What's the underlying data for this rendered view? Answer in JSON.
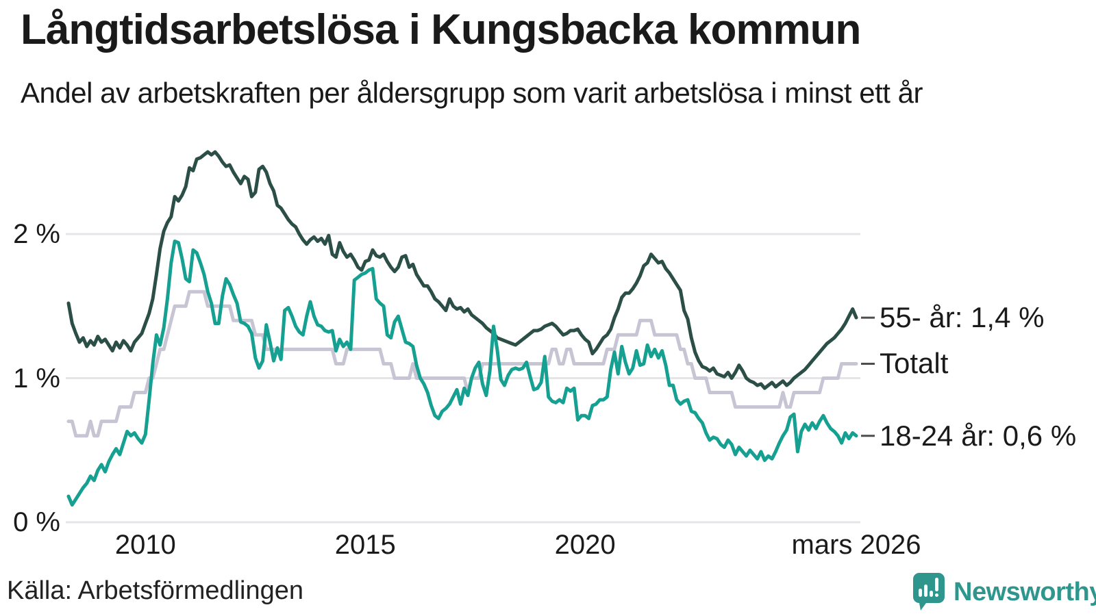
{
  "header": {
    "title": "Långtidsarbetslösa i Kungsbacka kommun",
    "subtitle": "Andel av arbetskraften per åldersgrupp som varit arbetslösa i minst ett år"
  },
  "footer": {
    "source": "Källa: Arbetsförmedlingen",
    "brand": "Newsworthy"
  },
  "colors": {
    "text": "#1a1a1a",
    "grid": "#e4e4e9",
    "brand_teal": "#2e968c"
  },
  "chart_data": {
    "type": "line",
    "title": "Långtidsarbetslösa i Kungsbacka kommun",
    "subtitle": "Andel av arbetskraften per åldersgrupp som varit arbetslösa i minst ett år",
    "x_interval": "monthly",
    "x_start_month": "2008-04",
    "x_end_month": "2026-03",
    "ylim": [
      0,
      2.75
    ],
    "grid": "horizontal",
    "legend_position": "line-end-labels-right",
    "y_ticks": [
      {
        "label": "2 %",
        "value": 2
      },
      {
        "label": "1 %",
        "value": 1
      },
      {
        "label": "0 %",
        "value": 0
      }
    ],
    "x_ticks": [
      {
        "label": "2010",
        "month_index": 21
      },
      {
        "label": "2015",
        "month_index": 81
      },
      {
        "label": "2020",
        "month_index": 141
      },
      {
        "label": "mars 2026",
        "month_index": 215
      }
    ],
    "series": [
      {
        "name": "55- år",
        "label": "55- år: 1,4 %",
        "end_value_label": "1,4 %",
        "color": "#2b4f47",
        "values": [
          1.52,
          1.38,
          1.31,
          1.25,
          1.28,
          1.22,
          1.26,
          1.23,
          1.29,
          1.25,
          1.27,
          1.23,
          1.19,
          1.25,
          1.21,
          1.26,
          1.23,
          1.19,
          1.25,
          1.28,
          1.31,
          1.38,
          1.45,
          1.55,
          1.72,
          1.9,
          2.02,
          2.08,
          2.12,
          2.26,
          2.23,
          2.27,
          2.33,
          2.46,
          2.44,
          2.52,
          2.53,
          2.55,
          2.57,
          2.55,
          2.57,
          2.54,
          2.5,
          2.47,
          2.48,
          2.43,
          2.39,
          2.35,
          2.4,
          2.38,
          2.26,
          2.29,
          2.45,
          2.47,
          2.43,
          2.35,
          2.3,
          2.2,
          2.18,
          2.14,
          2.1,
          2.07,
          2.05,
          2.0,
          1.96,
          1.93,
          1.96,
          1.98,
          1.95,
          1.97,
          1.93,
          1.99,
          1.86,
          1.84,
          1.94,
          1.88,
          1.84,
          1.86,
          1.82,
          1.77,
          1.75,
          1.81,
          1.82,
          1.89,
          1.85,
          1.84,
          1.86,
          1.81,
          1.77,
          1.74,
          1.77,
          1.84,
          1.85,
          1.77,
          1.79,
          1.72,
          1.68,
          1.64,
          1.64,
          1.6,
          1.55,
          1.53,
          1.5,
          1.47,
          1.55,
          1.5,
          1.48,
          1.49,
          1.46,
          1.48,
          1.44,
          1.42,
          1.4,
          1.38,
          1.35,
          1.33,
          1.31,
          1.28,
          1.27,
          1.26,
          1.25,
          1.24,
          1.23,
          1.25,
          1.27,
          1.29,
          1.31,
          1.33,
          1.33,
          1.34,
          1.36,
          1.37,
          1.38,
          1.36,
          1.33,
          1.3,
          1.31,
          1.33,
          1.33,
          1.34,
          1.3,
          1.27,
          1.25,
          1.17,
          1.2,
          1.24,
          1.28,
          1.3,
          1.34,
          1.42,
          1.48,
          1.56,
          1.59,
          1.59,
          1.62,
          1.66,
          1.71,
          1.78,
          1.8,
          1.86,
          1.83,
          1.8,
          1.81,
          1.76,
          1.73,
          1.69,
          1.65,
          1.61,
          1.47,
          1.41,
          1.28,
          1.18,
          1.12,
          1.08,
          1.07,
          1.05,
          1.07,
          1.03,
          1.02,
          1.01,
          1.04,
          1.0,
          1.04,
          1.09,
          1.05,
          1.0,
          0.98,
          0.97,
          0.95,
          0.96,
          0.93,
          0.95,
          0.97,
          0.94,
          0.96,
          0.98,
          0.95,
          0.97,
          1.0,
          1.02,
          1.04,
          1.06,
          1.09,
          1.12,
          1.15,
          1.18,
          1.21,
          1.24,
          1.26,
          1.28,
          1.31,
          1.34,
          1.38,
          1.43,
          1.48,
          1.42
        ]
      },
      {
        "name": "Totalt",
        "label": "Totalt",
        "end_value_label": "1,1 %",
        "color": "#c7c4d4",
        "values": [
          0.7,
          0.7,
          0.6,
          0.6,
          0.6,
          0.6,
          0.7,
          0.6,
          0.6,
          0.7,
          0.7,
          0.7,
          0.7,
          0.7,
          0.8,
          0.8,
          0.8,
          0.8,
          0.9,
          0.9,
          0.9,
          0.9,
          1.0,
          1.0,
          1.1,
          1.2,
          1.2,
          1.3,
          1.4,
          1.5,
          1.5,
          1.5,
          1.5,
          1.6,
          1.6,
          1.6,
          1.6,
          1.6,
          1.5,
          1.5,
          1.5,
          1.5,
          1.5,
          1.5,
          1.5,
          1.4,
          1.4,
          1.4,
          1.4,
          1.4,
          1.4,
          1.3,
          1.3,
          1.3,
          1.2,
          1.2,
          1.2,
          1.2,
          1.2,
          1.2,
          1.2,
          1.2,
          1.2,
          1.2,
          1.2,
          1.2,
          1.2,
          1.2,
          1.2,
          1.2,
          1.2,
          1.2,
          1.2,
          1.1,
          1.1,
          1.1,
          1.2,
          1.2,
          1.2,
          1.2,
          1.2,
          1.2,
          1.2,
          1.2,
          1.2,
          1.2,
          1.1,
          1.1,
          1.1,
          1.0,
          1.0,
          1.0,
          1.0,
          1.0,
          1.1,
          1.0,
          1.0,
          1.0,
          1.0,
          1.0,
          1.0,
          1.0,
          1.0,
          1.0,
          1.0,
          1.0,
          1.0,
          1.0,
          1.0,
          0.9,
          1.0,
          1.0,
          1.0,
          1.1,
          1.1,
          1.1,
          1.1,
          1.1,
          1.1,
          1.1,
          1.1,
          1.1,
          1.1,
          1.1,
          1.1,
          1.1,
          1.1,
          1.1,
          1.1,
          1.1,
          1.1,
          1.1,
          1.2,
          1.2,
          1.1,
          1.1,
          1.2,
          1.2,
          1.1,
          1.1,
          1.1,
          1.1,
          1.1,
          1.1,
          1.1,
          1.1,
          1.1,
          1.2,
          1.2,
          1.2,
          1.3,
          1.3,
          1.3,
          1.3,
          1.3,
          1.3,
          1.4,
          1.4,
          1.4,
          1.4,
          1.3,
          1.3,
          1.3,
          1.3,
          1.3,
          1.3,
          1.3,
          1.2,
          1.2,
          1.1,
          1.1,
          1.0,
          1.0,
          1.0,
          1.0,
          0.9,
          0.9,
          0.9,
          0.9,
          0.9,
          0.9,
          0.9,
          0.8,
          0.8,
          0.8,
          0.8,
          0.8,
          0.8,
          0.8,
          0.8,
          0.8,
          0.8,
          0.8,
          0.8,
          0.8,
          0.9,
          0.8,
          0.8,
          0.9,
          0.9,
          0.9,
          0.9,
          0.9,
          0.9,
          0.9,
          0.9,
          1.0,
          1.0,
          1.0,
          1.0,
          1.0,
          1.1,
          1.1,
          1.1,
          1.1,
          1.1
        ]
      },
      {
        "name": "18-24 år",
        "label": "18-24 år: 0,6 %",
        "end_value_label": "0,6 %",
        "color": "#16a091",
        "values": [
          0.18,
          0.12,
          0.16,
          0.2,
          0.24,
          0.27,
          0.32,
          0.29,
          0.36,
          0.4,
          0.35,
          0.42,
          0.47,
          0.51,
          0.47,
          0.55,
          0.63,
          0.6,
          0.62,
          0.58,
          0.55,
          0.61,
          0.85,
          1.1,
          1.3,
          1.23,
          1.35,
          1.55,
          1.8,
          1.95,
          1.94,
          1.83,
          1.69,
          1.67,
          1.89,
          1.87,
          1.8,
          1.72,
          1.6,
          1.52,
          1.38,
          1.38,
          1.57,
          1.69,
          1.65,
          1.58,
          1.52,
          1.39,
          1.38,
          1.36,
          1.31,
          1.14,
          1.07,
          1.12,
          1.37,
          1.25,
          1.12,
          1.21,
          1.13,
          1.47,
          1.49,
          1.43,
          1.36,
          1.32,
          1.3,
          1.43,
          1.53,
          1.43,
          1.37,
          1.36,
          1.33,
          1.32,
          1.33,
          1.19,
          1.27,
          1.22,
          1.25,
          1.2,
          1.68,
          1.7,
          1.72,
          1.73,
          1.75,
          1.76,
          1.55,
          1.52,
          1.5,
          1.3,
          1.28,
          1.39,
          1.43,
          1.34,
          1.25,
          1.24,
          1.22,
          1.09,
          1.0,
          0.96,
          0.9,
          0.81,
          0.74,
          0.72,
          0.77,
          0.79,
          0.82,
          0.87,
          0.92,
          0.82,
          0.93,
          0.88,
          1.0,
          1.07,
          1.11,
          0.96,
          0.88,
          1.05,
          1.36,
          1.2,
          0.99,
          0.95,
          1.02,
          1.06,
          1.07,
          1.06,
          1.07,
          1.11,
          1.01,
          0.92,
          0.93,
          0.97,
          1.15,
          0.87,
          0.84,
          0.83,
          0.85,
          0.83,
          0.93,
          0.91,
          0.93,
          0.71,
          0.74,
          0.74,
          0.72,
          0.81,
          0.82,
          0.85,
          0.85,
          0.87,
          1.06,
          1.18,
          1.03,
          1.22,
          1.11,
          1.03,
          1.07,
          1.19,
          1.09,
          1.1,
          1.23,
          1.15,
          1.2,
          1.14,
          1.19,
          1.09,
          0.95,
          0.95,
          0.85,
          0.82,
          0.84,
          0.85,
          0.77,
          0.76,
          0.72,
          0.69,
          0.62,
          0.57,
          0.59,
          0.58,
          0.54,
          0.52,
          0.57,
          0.54,
          0.47,
          0.52,
          0.49,
          0.46,
          0.5,
          0.47,
          0.44,
          0.49,
          0.43,
          0.46,
          0.44,
          0.49,
          0.55,
          0.6,
          0.64,
          0.73,
          0.75,
          0.49,
          0.63,
          0.68,
          0.64,
          0.69,
          0.65,
          0.7,
          0.74,
          0.69,
          0.65,
          0.63,
          0.6,
          0.55,
          0.62,
          0.58,
          0.62,
          0.6
        ]
      }
    ]
  }
}
